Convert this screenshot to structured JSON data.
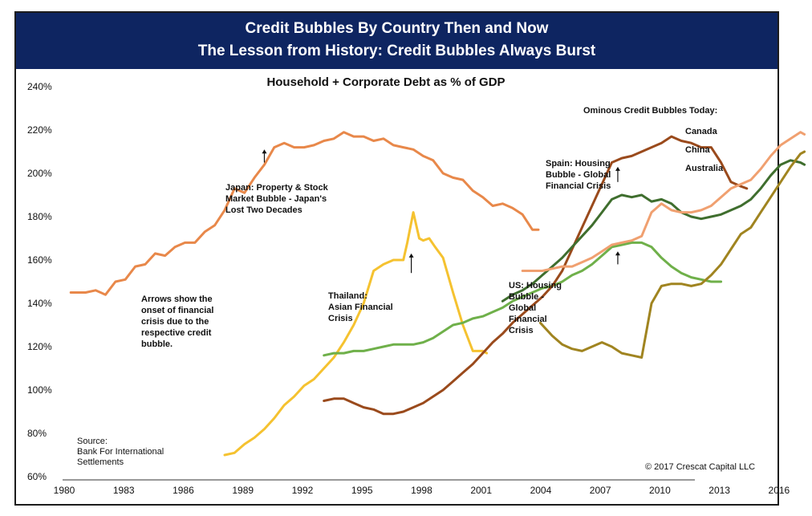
{
  "header": {
    "title_line1": "Credit Bubbles By Country Then and Now",
    "title_line2": "The Lesson from History: Credit Bubbles Always Burst"
  },
  "chart_data": {
    "type": "line",
    "title": "Household + Corporate Debt as % of GDP",
    "xlabel": "",
    "ylabel": "",
    "xlim": [
      1980,
      2017.5
    ],
    "ylim": [
      60,
      240
    ],
    "y_ticks": [
      "60%",
      "80%",
      "100%",
      "120%",
      "140%",
      "160%",
      "180%",
      "200%",
      "220%",
      "240%"
    ],
    "x_ticks": [
      "1980",
      "1983",
      "1986",
      "1989",
      "1992",
      "1995",
      "1998",
      "2001",
      "2004",
      "2007",
      "2010",
      "2013",
      "2016"
    ],
    "grid": false,
    "legend_title": "Ominous Credit Bubbles Today:",
    "series": [
      {
        "name": "",
        "color": "#e8884a",
        "x": [
          1980.25,
          1981,
          1981.5,
          1982,
          1982.5,
          1983,
          1983.5,
          1984,
          1984.5,
          1985,
          1985.5,
          1986,
          1986.5,
          1987,
          1987.5,
          1988,
          1988.5,
          1989,
          1989.5,
          1990,
          1990.5,
          1991,
          1991.5,
          1992,
          1992.5,
          1993,
          1993.5,
          1994,
          1994.5,
          1995,
          1995.5,
          1996,
          1996.5,
          1997,
          1997.5,
          1998,
          1998.5,
          1999,
          1999.5,
          2000,
          2000.5,
          2001,
          2001.5,
          2002,
          2002.5,
          2003,
          2003.5,
          2003.8
        ],
        "y": [
          145,
          145,
          146,
          144,
          150,
          151,
          157,
          158,
          163,
          162,
          166,
          168,
          168,
          173,
          176,
          183,
          193,
          191,
          198,
          204,
          212,
          214,
          212,
          212,
          213,
          215,
          216,
          219,
          217,
          217,
          215,
          216,
          213,
          212,
          211,
          208,
          206,
          200,
          198,
          197,
          192,
          189,
          185,
          186,
          184,
          181,
          174,
          174
        ]
      },
      {
        "name": "",
        "color": "#f5c230",
        "x": [
          1988,
          1988.5,
          1989,
          1989.5,
          1990,
          1990.5,
          1991,
          1991.5,
          1992,
          1992.5,
          1993,
          1993.5,
          1994,
          1994.5,
          1995,
          1995.5,
          1996,
          1996.5,
          1997,
          1997.2,
          1997.5,
          1997.8,
          1998,
          1998.3,
          1998.6,
          1999,
          1999.5,
          2000,
          2000.5,
          2001,
          2001.2
        ],
        "y": [
          70,
          71,
          75,
          78,
          82,
          87,
          93,
          97,
          102,
          105,
          110,
          115,
          122,
          130,
          140,
          155,
          158,
          160,
          160,
          168,
          182,
          170,
          169,
          170,
          166,
          161,
          145,
          130,
          118,
          118,
          117
        ]
      },
      {
        "name": "",
        "color": "#6fb04a",
        "x": [
          1993,
          1993.5,
          1994,
          1994.5,
          1995,
          1995.5,
          1996,
          1996.5,
          1997,
          1997.5,
          1998,
          1998.5,
          1999,
          1999.5,
          2000,
          2000.5,
          2001,
          2001.5,
          2002,
          2002.5,
          2003,
          2003.5,
          2004,
          2004.5,
          2005,
          2005.5,
          2006,
          2006.5,
          2007,
          2007.5,
          2008,
          2008.5,
          2009,
          2009.5,
          2010,
          2010.5,
          2011,
          2011.5,
          2012,
          2012.5,
          2013
        ],
        "y": [
          116,
          117,
          117,
          118,
          118,
          119,
          120,
          121,
          121,
          121,
          122,
          124,
          127,
          130,
          131,
          133,
          134,
          136,
          138,
          141,
          143,
          145,
          147,
          148,
          150,
          153,
          155,
          158,
          162,
          166,
          167,
          168,
          168,
          166,
          161,
          157,
          154,
          152,
          151,
          150,
          150
        ]
      },
      {
        "name": "",
        "color": "#9a4a1c",
        "x": [
          1993,
          1993.5,
          1994,
          1994.5,
          1995,
          1995.5,
          1996,
          1996.5,
          1997,
          1997.5,
          1998,
          1998.5,
          1999,
          1999.5,
          2000,
          2000.5,
          2001,
          2001.5,
          2002,
          2002.5,
          2003,
          2003.5,
          2004,
          2004.5,
          2005,
          2005.5,
          2006,
          2006.5,
          2007,
          2007.5,
          2008,
          2008.5,
          2009,
          2009.5,
          2010,
          2010.5,
          2011,
          2011.5,
          2012,
          2012.5,
          2013,
          2013.5,
          2014,
          2014.3
        ],
        "y": [
          95,
          96,
          96,
          94,
          92,
          91,
          89,
          89,
          90,
          92,
          94,
          97,
          100,
          104,
          108,
          112,
          117,
          122,
          126,
          131,
          135,
          139,
          143,
          148,
          155,
          165,
          175,
          185,
          195,
          205,
          207,
          208,
          210,
          212,
          214,
          217,
          215,
          214,
          212,
          212,
          205,
          196,
          194,
          193
        ]
      },
      {
        "name": "",
        "color": "#3f6e2e",
        "x": [
          2002,
          2002.5,
          2003,
          2003.5,
          2004,
          2004.5,
          2005,
          2005.5,
          2006,
          2006.5,
          2007,
          2007.5,
          2008,
          2008.5,
          2009,
          2009.5,
          2010,
          2010.5,
          2011,
          2011.5,
          2012,
          2012.5,
          2013,
          2013.5,
          2014,
          2014.5,
          2015,
          2015.5,
          2016,
          2016.5,
          2017,
          2017.2
        ],
        "y": [
          141,
          144,
          146,
          149,
          153,
          157,
          161,
          166,
          171,
          176,
          182,
          188,
          190,
          189,
          190,
          187,
          188,
          186,
          182,
          180,
          179,
          180,
          181,
          183,
          185,
          188,
          193,
          199,
          204,
          206,
          205,
          204
        ]
      },
      {
        "name": "Canada",
        "color": "#f0a070",
        "x": [
          2003,
          2003.5,
          2004,
          2004.5,
          2005,
          2005.5,
          2006,
          2006.5,
          2007,
          2007.5,
          2008,
          2008.5,
          2009,
          2009.5,
          2010,
          2010.5,
          2011,
          2011.5,
          2012,
          2012.5,
          2013,
          2013.5,
          2014,
          2014.5,
          2015,
          2015.5,
          2016,
          2016.5,
          2017,
          2017.2
        ],
        "y": [
          155,
          155,
          155,
          156,
          157,
          157,
          159,
          161,
          164,
          167,
          168,
          169,
          171,
          182,
          186,
          183,
          182,
          182,
          183,
          185,
          189,
          193,
          195,
          197,
          202,
          208,
          213,
          216,
          219,
          218
        ]
      },
      {
        "name": "China",
        "color": "#a08420",
        "x": [
          2003.9,
          2004.5,
          2005,
          2005.5,
          2006,
          2006.5,
          2007,
          2007.5,
          2008,
          2008.5,
          2009,
          2009.5,
          2010,
          2010.5,
          2011,
          2011.5,
          2012,
          2012.5,
          2013,
          2013.5,
          2014,
          2014.5,
          2015,
          2015.5,
          2016,
          2016.5,
          2017,
          2017.2
        ],
        "y": [
          131,
          125,
          121,
          119,
          118,
          120,
          122,
          120,
          117,
          116,
          115,
          140,
          148,
          149,
          149,
          148,
          149,
          153,
          158,
          165,
          172,
          175,
          182,
          189,
          196,
          203,
          209,
          210
        ]
      },
      {
        "name": "Australia",
        "color": "#3f6e2e",
        "x": [],
        "y": []
      }
    ]
  },
  "annotations": {
    "japan": "Japan: Property & Stock\nMarket Bubble - Japan's\nLost Two Decades",
    "arrows_note": "Arrows show the\nonset of financial\ncrisis due to the\nrespective credit\nbubble.",
    "thailand": "Thailand:\nAsian Financial\nCrisis",
    "spain": "Spain: Housing\nBubble - Global\nFinancial Crisis",
    "us": "US: Housing\nBubble -\nGlobal\nFinancial\nCrisis",
    "source": "Source:\nBank For International\nSettlements",
    "copyright": "© 2017 Crescat Capital LLC"
  }
}
